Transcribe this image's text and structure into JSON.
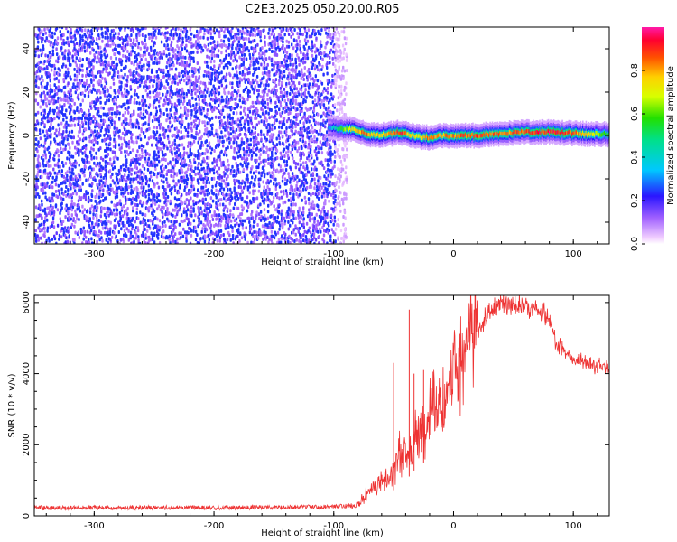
{
  "title": "C2E3.2025.050.20.00.R05",
  "chart_data": [
    {
      "type": "heatmap",
      "xlabel": "Height of straight line (km)",
      "ylabel": "Frequency (Hz)",
      "xlim": [
        -350,
        130
      ],
      "ylim": [
        -50,
        50
      ],
      "x_ticks": [
        -300,
        -200,
        -100,
        0,
        100
      ],
      "y_ticks": [
        -40,
        -20,
        0,
        20,
        40
      ],
      "colorbar": {
        "label": "Normalized spectral amplitude",
        "range": [
          0.0,
          1.0
        ],
        "ticks": [
          0.0,
          0.2,
          0.4,
          0.6,
          0.8
        ]
      },
      "noise_region_x": [
        -350,
        -100
      ],
      "noise_density_near_0hz": [
        0.25,
        0.5
      ],
      "signal_ridge": {
        "x": [
          -105,
          -95,
          -85,
          -75,
          -65,
          -55,
          -45,
          -38,
          -30,
          -20,
          -10,
          0,
          20,
          40,
          60,
          80,
          100,
          130
        ],
        "frequency": [
          4,
          3,
          3,
          1,
          0,
          0.5,
          1.5,
          0.5,
          -0.5,
          -1,
          0,
          0,
          0,
          1,
          1.5,
          1.5,
          1,
          0.5
        ],
        "peak_amplitude": [
          0.3,
          0.6,
          0.8,
          0.9,
          0.8,
          0.85,
          1.0,
          0.8,
          0.75,
          0.9,
          0.85,
          0.9,
          0.95,
          0.9,
          0.95,
          1.0,
          0.9,
          0.6
        ]
      },
      "grid": false
    },
    {
      "type": "line",
      "xlabel": "Height of straight line (km)",
      "ylabel": "SNR (10 * v/v)",
      "xlim": [
        -350,
        130
      ],
      "ylim": [
        0,
        6200
      ],
      "x_ticks": [
        -300,
        -200,
        -100,
        0,
        100
      ],
      "y_ticks": [
        0,
        2000,
        4000,
        6000
      ],
      "color": "#ee3333",
      "grid": false,
      "series": [
        {
          "x": [
            -350,
            -300,
            -250,
            -200,
            -150,
            -100,
            -80,
            -70,
            -60,
            -50,
            -45,
            -40,
            -35,
            -30,
            -25,
            -20,
            -15,
            -10,
            -5,
            0,
            10,
            20,
            30,
            40,
            50,
            60,
            70,
            80,
            85,
            90,
            100,
            110,
            120,
            130
          ],
          "values": [
            220,
            230,
            225,
            230,
            240,
            250,
            300,
            700,
            1000,
            1200,
            1700,
            1600,
            2000,
            2300,
            2500,
            2800,
            3000,
            3200,
            3400,
            4200,
            4800,
            5300,
            5700,
            5900,
            5950,
            5900,
            5800,
            5500,
            4900,
            4700,
            4400,
            4300,
            4200,
            4150
          ],
          "spikes": [
            {
              "x": -50,
              "y": 4300
            },
            {
              "x": -37,
              "y": 5800
            },
            {
              "x": -33,
              "y": 4000
            },
            {
              "x": -25,
              "y": 4100
            }
          ]
        }
      ]
    }
  ]
}
